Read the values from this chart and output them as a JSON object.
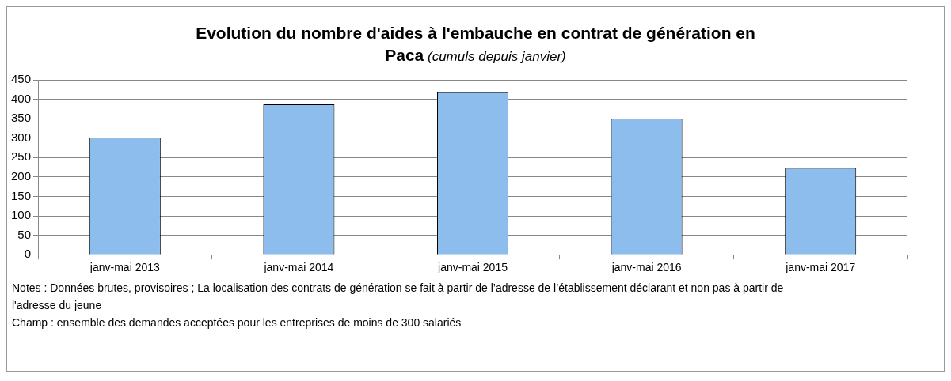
{
  "chart_data": {
    "type": "bar",
    "title": "Evolution du nombre d'aides à l'embauche en contrat de génération en Paca",
    "subtitle": "(cumuls depuis janvier)",
    "categories": [
      "janv-mai 2013",
      "janv-mai 2014",
      "janv-mai 2015",
      "janv-mai 2016",
      "janv-mai 2017"
    ],
    "values": [
      301,
      387,
      418,
      350,
      223
    ],
    "color": "#8cbdec",
    "ylim": [
      0,
      450
    ],
    "yticks": [
      0,
      50,
      100,
      150,
      200,
      250,
      300,
      350,
      400,
      450
    ],
    "grid": "y",
    "legend": false,
    "annotations": [
      "Notes : Données brutes, provisoires ; La localisation des contrats de génération se fait à partir de l’adresse de l’établissement déclarant et non pas à partir de l'adresse du jeune",
      "Champ : ensemble des demandes acceptées pour les entreprises de moins de 300 salariés"
    ]
  }
}
